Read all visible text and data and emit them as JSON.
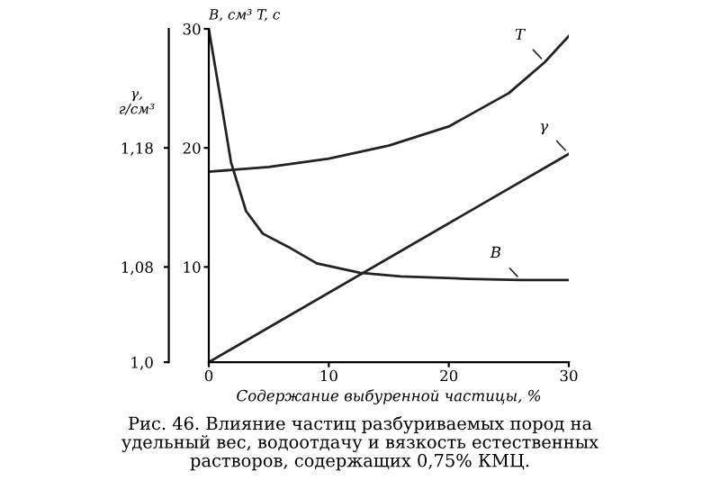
{
  "chart_data": {
    "type": "line",
    "xlabel": "Содержание выбуренной частицы, %",
    "ylabel": "γ,\nг/см³",
    "y2label": "B, см³ T, с",
    "annotations": [
      "Рис. 46. Влияние частиц разбуриваемых пород на\nудельный вес, водоотдачу и вязкость естественных\nрастворов, содержащих 0,75% КМЦ."
    ],
    "xlim": [
      0,
      30
    ],
    "xticks": [
      0,
      10,
      20,
      30
    ],
    "ylim": [
      1.0,
      1.28
    ],
    "yticks": [
      {
        "value": 1.0,
        "label": "1,0"
      },
      {
        "value": 1.08,
        "label": "1,08"
      },
      {
        "value": 1.18,
        "label": "1,18"
      }
    ],
    "y2lim": [
      2,
      30
    ],
    "y2ticks": [
      10,
      20,
      30
    ],
    "grid": false,
    "legend": false,
    "marker": "none",
    "line_style": "solid",
    "series": [
      {
        "name": "T",
        "axis": "y2",
        "color": "#222222",
        "x": [
          0,
          5,
          10,
          15,
          20,
          25,
          28,
          30
        ],
        "values": [
          18.0,
          18.4,
          19.1,
          20.2,
          21.8,
          24.6,
          27.2,
          29.4
        ]
      },
      {
        "name": "γ",
        "color": "#222222",
        "x": [
          0,
          30
        ],
        "values": [
          1.0,
          1.175
        ]
      },
      {
        "name": "B",
        "axis": "y2",
        "color": "#222222",
        "x": [
          0,
          1,
          1.85,
          3.1,
          4.5,
          6.6,
          9,
          12.6,
          16,
          21.6,
          26,
          30
        ],
        "values": [
          30,
          24,
          18.8,
          14.7,
          12.8,
          11.7,
          10.3,
          9.5,
          9.2,
          9.0,
          8.9,
          8.9
        ]
      }
    ]
  }
}
